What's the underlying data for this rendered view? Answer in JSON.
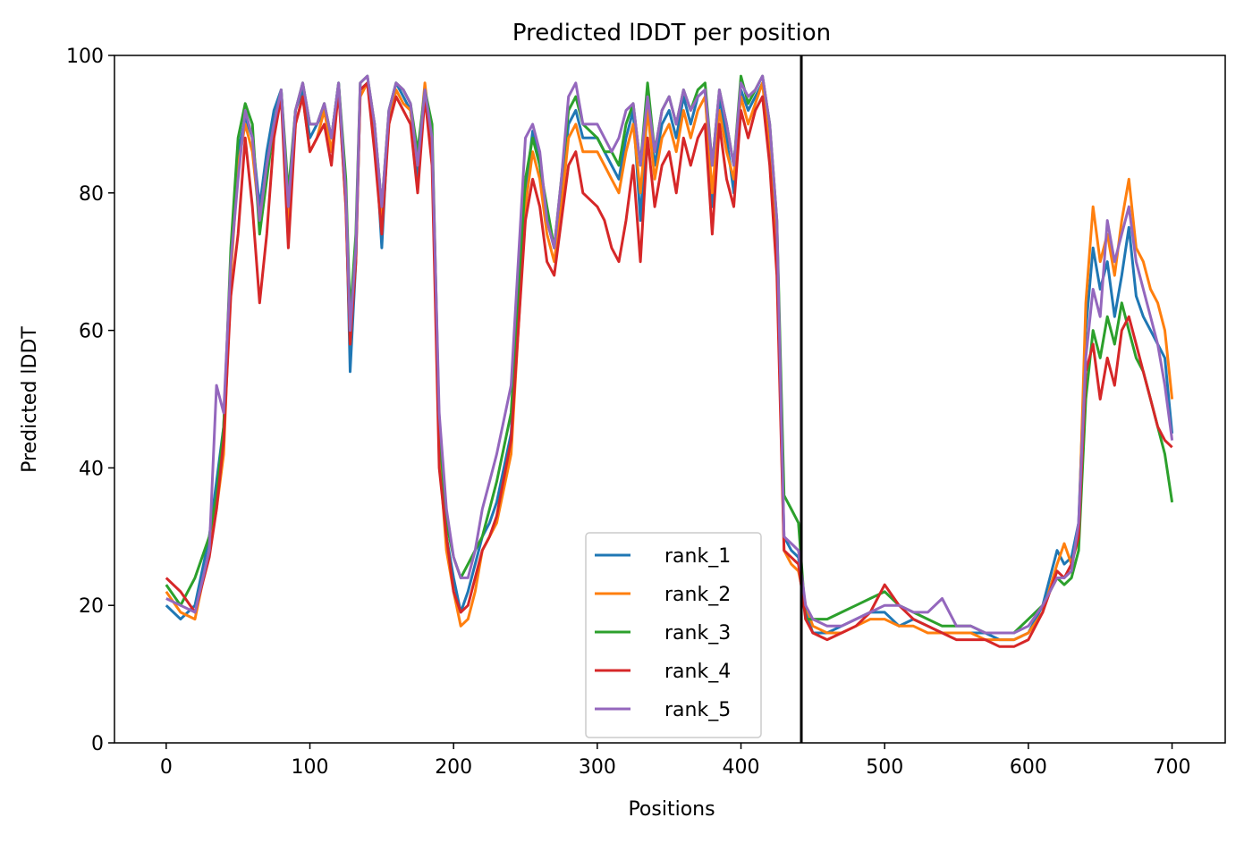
{
  "chart_data": {
    "type": "line",
    "title": "Predicted lDDT per position",
    "xlabel": "Positions",
    "ylabel": "Predicted lDDT",
    "xlim": [
      -36,
      737
    ],
    "ylim": [
      0,
      100
    ],
    "xticks": [
      0,
      100,
      200,
      300,
      400,
      500,
      600,
      700
    ],
    "yticks": [
      0,
      20,
      40,
      60,
      80,
      100
    ],
    "grid": false,
    "legend_position": "lower center",
    "chain_break": 442,
    "chain_break_color": "#000000",
    "x": [
      0,
      10,
      20,
      30,
      35,
      40,
      45,
      50,
      55,
      60,
      65,
      70,
      75,
      80,
      85,
      90,
      95,
      100,
      105,
      110,
      115,
      120,
      125,
      128,
      132,
      135,
      140,
      145,
      150,
      155,
      160,
      165,
      170,
      175,
      180,
      185,
      190,
      195,
      200,
      205,
      210,
      215,
      220,
      225,
      230,
      240,
      250,
      255,
      260,
      265,
      270,
      275,
      280,
      285,
      290,
      300,
      305,
      310,
      315,
      320,
      325,
      330,
      335,
      340,
      345,
      350,
      355,
      360,
      365,
      370,
      375,
      380,
      385,
      390,
      395,
      400,
      405,
      410,
      415,
      420,
      425,
      430,
      435,
      440,
      445,
      450,
      460,
      470,
      480,
      490,
      500,
      510,
      520,
      530,
      540,
      550,
      560,
      570,
      580,
      590,
      600,
      610,
      620,
      625,
      630,
      635,
      640,
      645,
      650,
      655,
      660,
      665,
      670,
      675,
      680,
      685,
      690,
      695,
      700
    ],
    "series": [
      {
        "name": "rank_1",
        "color": "#1f77b4",
        "values": [
          20,
          18,
          20,
          30,
          38,
          46,
          70,
          86,
          91,
          88,
          78,
          86,
          92,
          95,
          78,
          92,
          95,
          88,
          90,
          92,
          88,
          96,
          80,
          54,
          70,
          95,
          96,
          90,
          72,
          92,
          96,
          94,
          92,
          82,
          94,
          88,
          45,
          30,
          24,
          19,
          22,
          26,
          30,
          32,
          35,
          45,
          80,
          89,
          84,
          76,
          72,
          80,
          90,
          92,
          88,
          88,
          86,
          84,
          82,
          88,
          92,
          76,
          93,
          84,
          90,
          92,
          88,
          94,
          90,
          94,
          95,
          78,
          94,
          88,
          80,
          95,
          92,
          94,
          96,
          88,
          70,
          30,
          28,
          27,
          19,
          16,
          16,
          17,
          18,
          19,
          19,
          17,
          18,
          17,
          16,
          16,
          16,
          16,
          15,
          15,
          16,
          20,
          28,
          26,
          27,
          32,
          60,
          72,
          66,
          70,
          62,
          68,
          75,
          65,
          62,
          60,
          58,
          56,
          45
        ]
      },
      {
        "name": "rank_2",
        "color": "#ff7f0e",
        "values": [
          22,
          19,
          18,
          28,
          34,
          42,
          68,
          84,
          90,
          86,
          76,
          84,
          90,
          94,
          76,
          90,
          94,
          86,
          88,
          92,
          86,
          95,
          78,
          58,
          72,
          94,
          96,
          88,
          76,
          90,
          95,
          93,
          92,
          84,
          96,
          86,
          42,
          28,
          22,
          17,
          18,
          22,
          28,
          30,
          32,
          42,
          78,
          86,
          82,
          74,
          70,
          78,
          88,
          90,
          86,
          86,
          84,
          82,
          80,
          86,
          90,
          80,
          92,
          82,
          88,
          90,
          86,
          92,
          88,
          92,
          94,
          80,
          92,
          86,
          82,
          94,
          90,
          93,
          96,
          86,
          72,
          28,
          26,
          25,
          20,
          17,
          16,
          16,
          17,
          18,
          18,
          17,
          17,
          16,
          16,
          16,
          16,
          15,
          15,
          15,
          16,
          19,
          26,
          29,
          26,
          30,
          64,
          78,
          70,
          74,
          68,
          76,
          82,
          72,
          70,
          66,
          64,
          60,
          50
        ]
      },
      {
        "name": "rank_3",
        "color": "#2ca02c",
        "values": [
          23,
          20,
          24,
          30,
          36,
          46,
          72,
          88,
          93,
          90,
          74,
          82,
          90,
          95,
          80,
          92,
          96,
          90,
          90,
          93,
          88,
          96,
          82,
          62,
          74,
          96,
          97,
          90,
          78,
          92,
          96,
          95,
          93,
          86,
          95,
          90,
          46,
          32,
          27,
          24,
          26,
          28,
          30,
          34,
          38,
          48,
          82,
          88,
          84,
          78,
          72,
          82,
          92,
          94,
          90,
          88,
          86,
          86,
          84,
          90,
          93,
          84,
          96,
          86,
          92,
          94,
          90,
          95,
          92,
          95,
          96,
          84,
          95,
          90,
          84,
          97,
          93,
          95,
          97,
          90,
          76,
          36,
          34,
          32,
          18,
          18,
          18,
          19,
          20,
          21,
          22,
          20,
          19,
          18,
          17,
          17,
          17,
          16,
          16,
          16,
          18,
          20,
          24,
          23,
          24,
          28,
          50,
          60,
          56,
          62,
          58,
          64,
          60,
          56,
          54,
          50,
          46,
          42,
          35
        ]
      },
      {
        "name": "rank_4",
        "color": "#d62728",
        "values": [
          24,
          22,
          19,
          27,
          34,
          44,
          65,
          74,
          88,
          78,
          64,
          74,
          88,
          94,
          72,
          90,
          94,
          86,
          88,
          90,
          84,
          95,
          78,
          58,
          70,
          95,
          96,
          86,
          74,
          90,
          94,
          92,
          90,
          80,
          94,
          84,
          40,
          30,
          22,
          19,
          20,
          24,
          28,
          30,
          33,
          44,
          76,
          82,
          78,
          70,
          68,
          76,
          84,
          86,
          80,
          78,
          76,
          72,
          70,
          76,
          84,
          70,
          88,
          78,
          84,
          86,
          80,
          88,
          84,
          88,
          90,
          74,
          90,
          82,
          78,
          92,
          88,
          92,
          94,
          84,
          68,
          28,
          27,
          26,
          18,
          16,
          15,
          16,
          17,
          19,
          23,
          20,
          18,
          17,
          16,
          15,
          15,
          15,
          14,
          14,
          15,
          19,
          25,
          24,
          26,
          30,
          54,
          58,
          50,
          56,
          52,
          60,
          62,
          58,
          54,
          50,
          46,
          44,
          43
        ]
      },
      {
        "name": "rank_5",
        "color": "#9467bd",
        "values": [
          21,
          20,
          19,
          28,
          52,
          48,
          70,
          82,
          92,
          88,
          76,
          84,
          90,
          95,
          78,
          92,
          96,
          90,
          90,
          93,
          88,
          96,
          80,
          60,
          72,
          96,
          97,
          90,
          78,
          92,
          96,
          95,
          93,
          84,
          95,
          88,
          48,
          34,
          27,
          24,
          24,
          28,
          34,
          38,
          42,
          52,
          88,
          90,
          86,
          76,
          72,
          82,
          94,
          96,
          90,
          90,
          88,
          86,
          88,
          92,
          93,
          84,
          94,
          86,
          92,
          94,
          90,
          95,
          92,
          94,
          95,
          84,
          95,
          90,
          84,
          96,
          94,
          95,
          97,
          90,
          76,
          30,
          29,
          28,
          20,
          18,
          17,
          17,
          18,
          19,
          20,
          20,
          19,
          19,
          21,
          17,
          17,
          16,
          16,
          16,
          17,
          20,
          24,
          24,
          25,
          32,
          56,
          66,
          62,
          76,
          70,
          74,
          78,
          70,
          66,
          62,
          58,
          52,
          44
        ]
      }
    ]
  }
}
